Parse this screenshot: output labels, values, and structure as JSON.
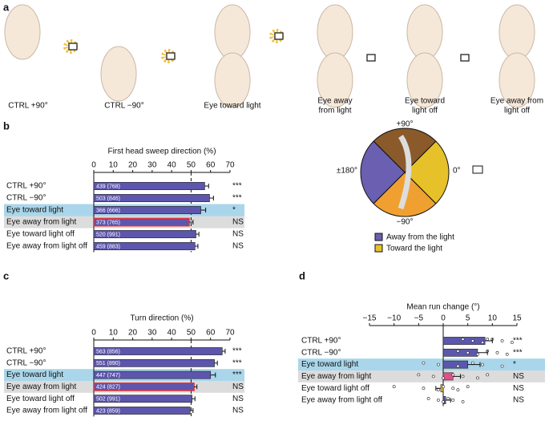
{
  "panel_labels": [
    "a",
    "b",
    "c",
    "d"
  ],
  "panel_a": {
    "conditions": [
      "CTRL +90°",
      "CTRL −90°",
      "Eye toward light",
      [
        "Eye away",
        "from light"
      ],
      [
        "Eye toward",
        "light off"
      ],
      [
        "Eye away from",
        "light off"
      ]
    ]
  },
  "diagram": {
    "labels": [
      "+90°",
      "0°",
      "−90°",
      "±180°"
    ],
    "legend": [
      {
        "name": "Away from the light",
        "color": "#6a5fb0"
      },
      {
        "name": "Toward the light",
        "color": "#e6c12a"
      }
    ]
  },
  "chart_data": [
    {
      "type": "bar",
      "orientation": "horizontal",
      "title": "First head sweep direction (%)",
      "categories": [
        "CTRL +90°",
        "CTRL −90°",
        "Eye toward light",
        "Eye away from light",
        "Eye toward light off",
        "Eye away from light off"
      ],
      "values": [
        57,
        59.5,
        55,
        49,
        52.5,
        52
      ],
      "errors": [
        2,
        2,
        2.5,
        2,
        1.5,
        1.5
      ],
      "bar_labels": [
        "439 (768)",
        "503 (846)",
        "366 (666)",
        "373 (765)",
        "520 (991)",
        "459 (883)"
      ],
      "significance": [
        "***",
        "***",
        "*",
        "NS",
        "NS",
        "NS"
      ],
      "color": "#5d56ad",
      "outline_colors": [
        null,
        null,
        null,
        "#e0303a",
        null,
        null
      ],
      "row_colors": [
        null,
        null,
        "#a9d6ea",
        "#dcdcdc",
        null,
        null
      ],
      "xlim": [
        0,
        70
      ],
      "xticks": [
        0,
        10,
        20,
        30,
        40,
        50,
        60,
        70
      ],
      "reference_line": 50
    },
    {
      "type": "bar",
      "orientation": "horizontal",
      "title": "Turn direction (%)",
      "categories": [
        "CTRL +90°",
        "CTRL −90°",
        "Eye toward light",
        "Eye away from light",
        "Eye toward light off",
        "Eye away from light off"
      ],
      "values": [
        66,
        62,
        60,
        51.5,
        50.5,
        49.5
      ],
      "errors": [
        1.5,
        1.5,
        2.5,
        1.5,
        1.5,
        1.5
      ],
      "bar_labels": [
        "563 (856)",
        "551 (890)",
        "447 (747)",
        "424 (827)",
        "502 (991)",
        "423 (859)"
      ],
      "significance": [
        "***",
        "***",
        "***",
        "NS",
        "NS",
        "NS"
      ],
      "color": "#5d56ad",
      "outline_colors": [
        null,
        null,
        null,
        "#e0303a",
        null,
        null
      ],
      "row_colors": [
        null,
        null,
        "#a9d6ea",
        "#dcdcdc",
        null,
        null
      ],
      "xlim": [
        0,
        70
      ],
      "xticks": [
        0,
        10,
        20,
        30,
        40,
        50,
        60,
        70
      ],
      "reference_line": 50
    },
    {
      "type": "bar",
      "orientation": "horizontal",
      "title": "Mean run change (°)",
      "categories": [
        "CTRL +90°",
        "CTRL −90°",
        "Eye toward light",
        "Eye away from light",
        "Eye toward light off",
        "Eye away from light off"
      ],
      "values": [
        8.5,
        7,
        5,
        2,
        -0.5,
        0.5
      ],
      "errors": [
        1.5,
        2,
        2.5,
        1.5,
        1,
        1
      ],
      "points": [
        [
          4,
          6,
          8,
          10,
          12,
          14,
          9
        ],
        [
          3,
          5,
          7,
          9,
          11,
          13
        ],
        [
          -4,
          -1,
          3,
          6,
          8,
          12
        ],
        [
          -5,
          -2,
          0,
          2,
          4,
          7,
          9
        ],
        [
          -10,
          -4,
          -1,
          0,
          2,
          3,
          5
        ],
        [
          -3,
          -1,
          0,
          1,
          2,
          4
        ]
      ],
      "significance": [
        "***",
        "***",
        "*",
        "NS",
        "NS",
        "NS"
      ],
      "color": "#5d56ad",
      "bar_colors": [
        "#5d56ad",
        "#5d56ad",
        "#5d56ad",
        "#e0508a",
        "#e6b42a",
        "#5d56ad"
      ],
      "row_colors": [
        null,
        null,
        "#a9d6ea",
        "#dcdcdc",
        null,
        null
      ],
      "xlim": [
        -15,
        15
      ],
      "xticks": [
        {
          "value": -15,
          "label": "−15"
        },
        {
          "value": -10,
          "label": "−10"
        },
        {
          "value": -5,
          "label": "−5"
        },
        0,
        5,
        10,
        15
      ],
      "reference_line": 0
    }
  ]
}
